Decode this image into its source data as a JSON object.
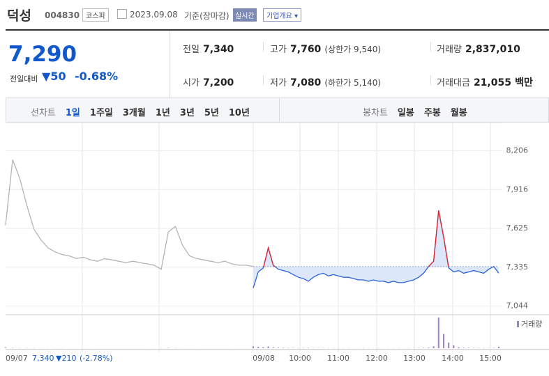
{
  "header": {
    "name": "덕성",
    "code": "004830",
    "market": "코스피",
    "date": "2023.09.08",
    "basis": "기준(장마감)",
    "realtime": "실시간",
    "company_info": "기업개요"
  },
  "quote": {
    "price": "7,290",
    "change_label": "전일대비",
    "change": "50",
    "change_pct": "-0.68%",
    "stats": [
      {
        "label": "전일",
        "value": "7,340"
      },
      {
        "label": "고가",
        "value": "7,760",
        "note": "(상한가 9,540)"
      },
      {
        "label": "거래량",
        "value": "2,837,010"
      },
      {
        "label": "시가",
        "value": "7,200"
      },
      {
        "label": "저가",
        "value": "7,080",
        "note": "(하한가 5,140)"
      },
      {
        "label": "거래대금",
        "value": "21,055",
        "unit": "백만"
      }
    ]
  },
  "tabs": {
    "line_label": "선차트",
    "line": [
      "1일",
      "1주일",
      "3개월",
      "1년",
      "3년",
      "5년",
      "10년"
    ],
    "candle_label": "봉차트",
    "candle": [
      "일봉",
      "주봉",
      "월봉"
    ]
  },
  "chart": {
    "type": "line",
    "ylim": [
      6990,
      8345
    ],
    "yticks": [
      {
        "value": 8206,
        "label": "8,206"
      },
      {
        "value": 7916,
        "label": "7,916"
      },
      {
        "value": 7625,
        "label": "7,625"
      },
      {
        "value": 7335,
        "label": "7,335"
      },
      {
        "value": 7044,
        "label": "7,044"
      }
    ],
    "prev_close": 7340,
    "series": [
      {
        "name": "09/07",
        "color": "#b4b4b4",
        "values": [
          7650,
          8140,
          8000,
          7800,
          7620,
          7540,
          7480,
          7450,
          7430,
          7420,
          7400,
          7410,
          7390,
          7380,
          7400,
          7390,
          7380,
          7370,
          7380,
          7370,
          7360,
          7350,
          7320,
          7600,
          7640,
          7500,
          7420,
          7400,
          7390,
          7380,
          7370,
          7380,
          7360,
          7350,
          7350,
          7340
        ]
      },
      {
        "name": "09/08",
        "color": "#2a62d6",
        "up_color": "#e8202a",
        "area_color": "#dce7fa",
        "values": [
          7180,
          7300,
          7330,
          7480,
          7350,
          7320,
          7310,
          7300,
          7280,
          7260,
          7250,
          7230,
          7260,
          7280,
          7290,
          7270,
          7280,
          7270,
          7260,
          7260,
          7250,
          7240,
          7240,
          7230,
          7240,
          7230,
          7230,
          7220,
          7230,
          7220,
          7220,
          7230,
          7240,
          7260,
          7290,
          7340,
          7380,
          7760,
          7560,
          7330,
          7300,
          7310,
          7290,
          7300,
          7310,
          7300,
          7290,
          7320,
          7340,
          7290
        ]
      }
    ],
    "volume": {
      "name": "거래량",
      "colors": [
        "#c8c8c8",
        "#9a82c8"
      ],
      "series": [
        [
          30000,
          12000,
          8000,
          9000,
          6000,
          5000,
          4000,
          3000,
          4000,
          3000,
          3000,
          2000,
          3000,
          2000,
          2000,
          3000,
          2000,
          2000,
          2000,
          2000,
          3000,
          2000,
          6000,
          14000,
          9000,
          4000,
          3000,
          3000,
          2000,
          2000,
          2000,
          2000,
          3000,
          2000,
          2000,
          4000
        ],
        [
          40000,
          30000,
          22000,
          35000,
          15000,
          10000,
          8000,
          6000,
          5000,
          4000,
          5000,
          6000,
          4000,
          3000,
          4000,
          3000,
          3000,
          3000,
          2000,
          3000,
          2000,
          2000,
          3000,
          2000,
          2000,
          3000,
          2000,
          2000,
          2000,
          3000,
          2000,
          3000,
          4000,
          5000,
          8000,
          12000,
          40000,
          650000,
          300000,
          120000,
          60000,
          20000,
          10000,
          8000,
          6000,
          5000,
          4000,
          5000,
          6000,
          30000
        ]
      ]
    },
    "x_labels": [
      "10:00",
      "11:00",
      "12:00",
      "13:00",
      "14:00",
      "15:00"
    ],
    "prev_day_summary": {
      "close": "7,340",
      "change": "▼210",
      "pct": "(-2.78%)"
    }
  }
}
